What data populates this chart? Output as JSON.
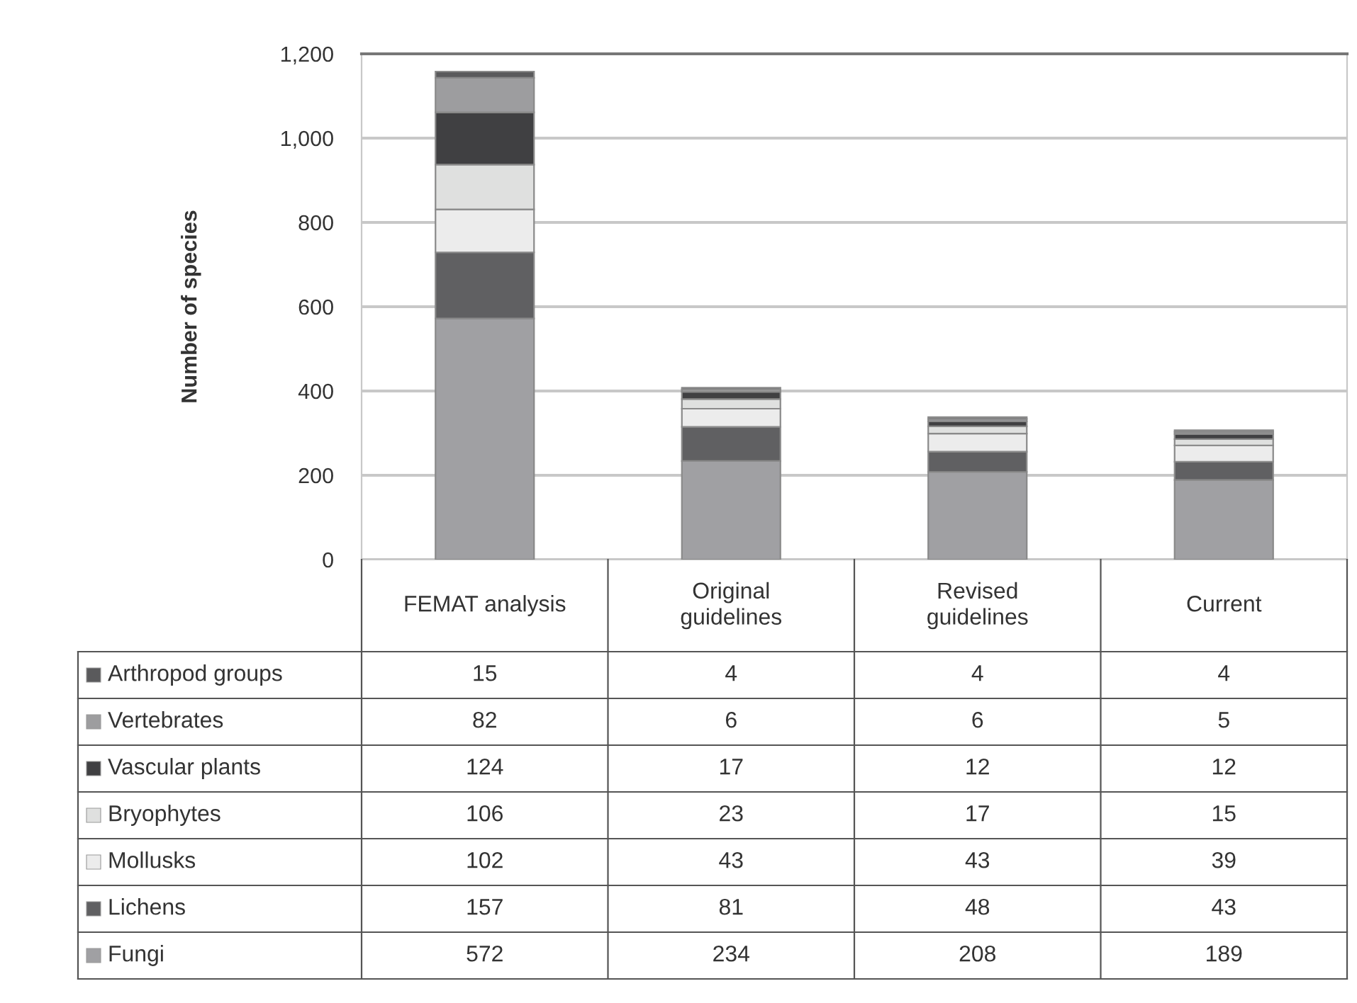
{
  "chart_data": {
    "type": "bar",
    "stacked": true,
    "ylabel": "Number of species",
    "categories": [
      "FEMAT analysis",
      "Original guidelines",
      "Revised guidelines",
      "Current"
    ],
    "series": [
      {
        "name": "Fungi",
        "color": "#a0a0a3",
        "values": [
          572,
          234,
          208,
          189
        ]
      },
      {
        "name": "Lichens",
        "color": "#606062",
        "values": [
          157,
          81,
          48,
          43
        ]
      },
      {
        "name": "Mollusks",
        "color": "#ececec",
        "values": [
          102,
          43,
          43,
          39
        ]
      },
      {
        "name": "Bryophytes",
        "color": "#dfe0df",
        "values": [
          106,
          23,
          17,
          15
        ]
      },
      {
        "name": "Vascular plants",
        "color": "#404042",
        "values": [
          124,
          17,
          12,
          12
        ]
      },
      {
        "name": "Vertebrates",
        "color": "#9d9d9f",
        "values": [
          82,
          6,
          6,
          5
        ]
      },
      {
        "name": "Arthropod groups",
        "color": "#5a5a5c",
        "values": [
          15,
          4,
          4,
          4
        ]
      }
    ],
    "ylim": [
      0,
      1200
    ],
    "yticks": [
      0,
      200,
      400,
      600,
      800,
      {
        "value": 1000,
        "label": "1,000"
      },
      {
        "value": 1200,
        "label": "1,200"
      }
    ],
    "grid": "y",
    "legend": "bottom",
    "data_labels": true
  }
}
